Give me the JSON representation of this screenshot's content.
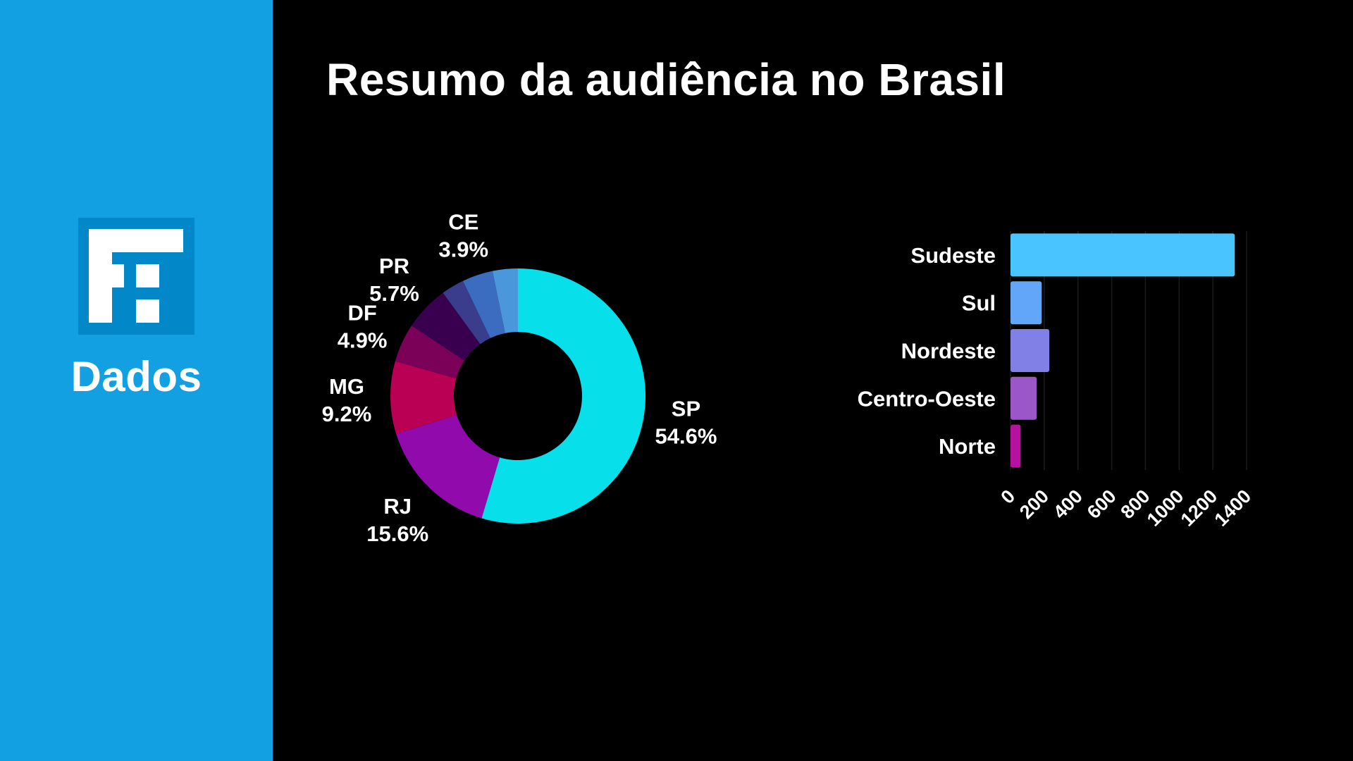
{
  "sidebar": {
    "brand": "Dados",
    "logo_letters": "F",
    "colors": {
      "background": "#12a0e3",
      "logo_box": "#0288c8"
    }
  },
  "header": {
    "title": "Resumo da audiência no Brasil"
  },
  "chart_data": [
    {
      "type": "pie",
      "variant": "donut",
      "start": "top",
      "direction": "clockwise",
      "slices": [
        {
          "label": "SP",
          "value": 54.6,
          "value_label": "54.6%",
          "color": "#07dfea"
        },
        {
          "label": "RJ",
          "value": 15.6,
          "value_label": "15.6%",
          "color": "#910aab"
        },
        {
          "label": "MG",
          "value": 9.2,
          "value_label": "9.2%",
          "color": "#b90055"
        },
        {
          "label": "DF",
          "value": 4.9,
          "value_label": "4.9%",
          "color": "#7a0058"
        },
        {
          "label": "PR",
          "value": 5.7,
          "value_label": "5.7%",
          "color": "#3a0050"
        },
        {
          "label": "",
          "value": 2.9,
          "value_label": "",
          "color": "#3a3c8c"
        },
        {
          "label": "CE",
          "value": 3.9,
          "value_label": "3.9%",
          "color": "#3a6cc0"
        },
        {
          "label": "",
          "value": 3.2,
          "value_label": "",
          "color": "#4a97dc"
        }
      ]
    },
    {
      "type": "bar",
      "orientation": "horizontal",
      "categories": [
        "Sudeste",
        "Sul",
        "Nordeste",
        "Centro-Oeste",
        "Norte"
      ],
      "values": [
        1330,
        185,
        230,
        155,
        60
      ],
      "colors": [
        "#4ac4fe",
        "#62a6f9",
        "#8080e6",
        "#9b57c7",
        "#b7129f"
      ],
      "xlim": [
        0,
        1400
      ],
      "xticks": [
        "0",
        "200",
        "400",
        "600",
        "800",
        "1000",
        "1200",
        "1400"
      ],
      "grid": "vertical",
      "tick_rotation": -45
    }
  ]
}
